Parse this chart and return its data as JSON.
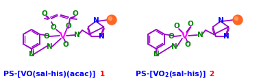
{
  "bg_color": "#ffffff",
  "blue": "#0000ff",
  "red": "#ff0000",
  "green": "#008800",
  "purple": "#9900cc",
  "magenta": "#ff00ff",
  "orange": "#ff6622",
  "fig_width": 3.78,
  "fig_height": 1.18,
  "label1": "PS-[VO(sal-his)(acac)]",
  "label1_num": "1",
  "label2a": "PS-[VO",
  "label2b": "(sal-his)]",
  "label2_num": "2"
}
